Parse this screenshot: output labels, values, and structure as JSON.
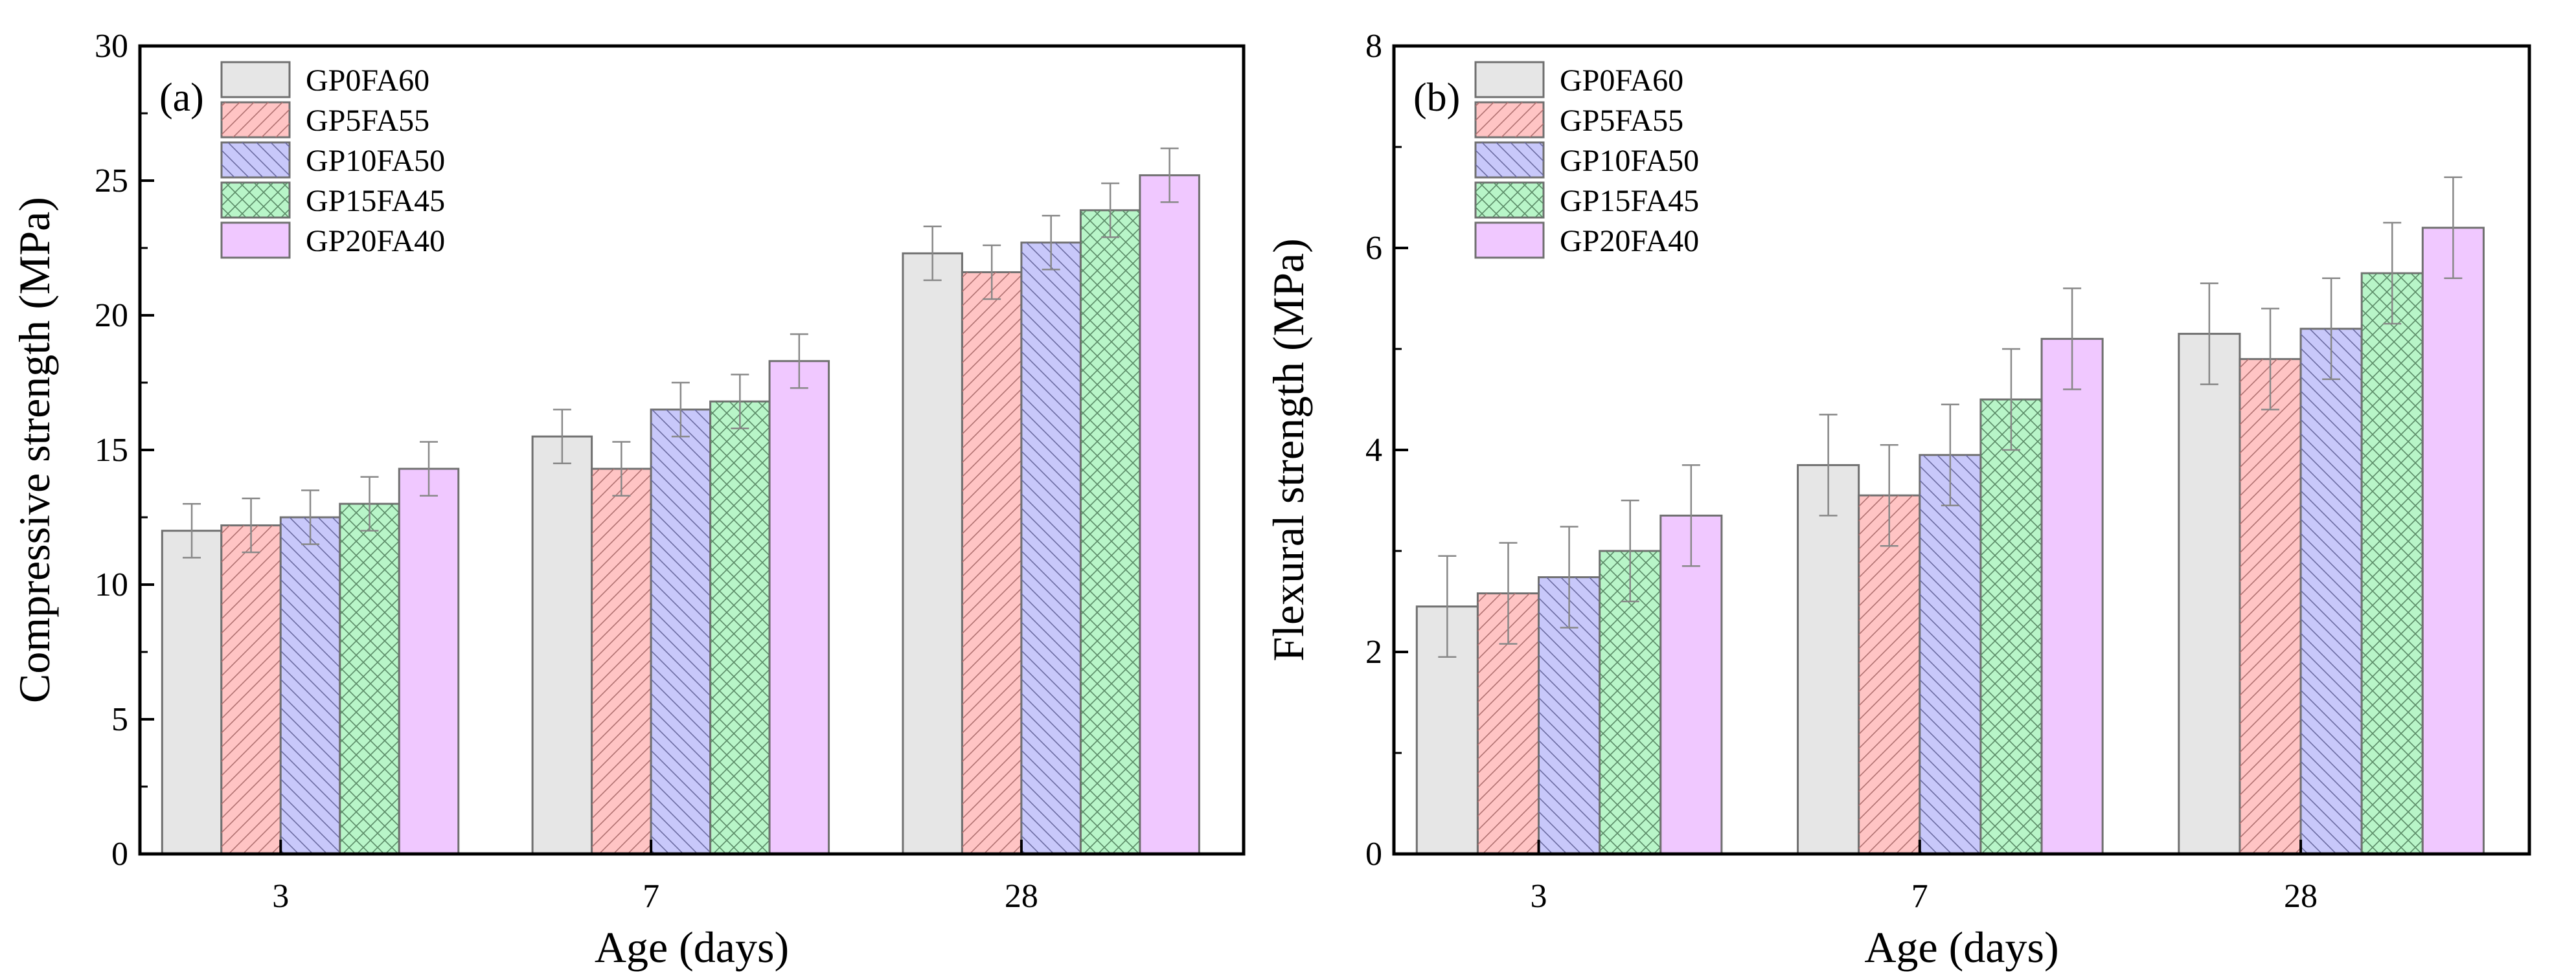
{
  "series_names": [
    "GP0FA60",
    "GP5FA55",
    "GP10FA50",
    "GP15FA45",
    "GP20FA40"
  ],
  "series_colors": [
    "#e6e6e6",
    "#ffc4c4",
    "#c8c8fa",
    "#b8f5c8",
    "#f0c8ff"
  ],
  "series_hatch": [
    "none",
    "forward",
    "backward",
    "cross",
    "none"
  ],
  "chart_data": [
    {
      "type": "bar",
      "panel_label": "(a)",
      "title": "",
      "xlabel": "Age (days)",
      "ylabel": "Compressive strength (MPa)",
      "categories": [
        "3",
        "7",
        "28"
      ],
      "ylim": [
        0,
        30
      ],
      "yticks": [
        0,
        5,
        10,
        15,
        20,
        25,
        30
      ],
      "legend": "top-left",
      "series": [
        {
          "name": "GP0FA60",
          "values": [
            12.0,
            15.5,
            22.3
          ],
          "errors": [
            1.0,
            1.0,
            1.0
          ]
        },
        {
          "name": "GP5FA55",
          "values": [
            12.2,
            14.3,
            21.6
          ],
          "errors": [
            1.0,
            1.0,
            1.0
          ]
        },
        {
          "name": "GP10FA50",
          "values": [
            12.5,
            16.5,
            22.7
          ],
          "errors": [
            1.0,
            1.0,
            1.0
          ]
        },
        {
          "name": "GP15FA45",
          "values": [
            13.0,
            16.8,
            23.9
          ],
          "errors": [
            1.0,
            1.0,
            1.0
          ]
        },
        {
          "name": "GP20FA40",
          "values": [
            14.3,
            18.3,
            25.2
          ],
          "errors": [
            1.0,
            1.0,
            1.0
          ]
        }
      ]
    },
    {
      "type": "bar",
      "panel_label": "(b)",
      "title": "",
      "xlabel": "Age (days)",
      "ylabel": "Flexural strength (MPa)",
      "categories": [
        "3",
        "7",
        "28"
      ],
      "ylim": [
        0,
        8
      ],
      "yticks": [
        0,
        2,
        4,
        6,
        8
      ],
      "legend": "top-left",
      "series": [
        {
          "name": "GP0FA60",
          "values": [
            2.45,
            3.85,
            5.15
          ],
          "errors": [
            0.5,
            0.5,
            0.5
          ]
        },
        {
          "name": "GP5FA55",
          "values": [
            2.58,
            3.55,
            4.9
          ],
          "errors": [
            0.5,
            0.5,
            0.5
          ]
        },
        {
          "name": "GP10FA50",
          "values": [
            2.74,
            3.95,
            5.2
          ],
          "errors": [
            0.5,
            0.5,
            0.5
          ]
        },
        {
          "name": "GP15FA45",
          "values": [
            3.0,
            4.5,
            5.75
          ],
          "errors": [
            0.5,
            0.5,
            0.5
          ]
        },
        {
          "name": "GP20FA40",
          "values": [
            3.35,
            5.1,
            6.2
          ],
          "errors": [
            0.5,
            0.5,
            0.5
          ]
        }
      ]
    }
  ]
}
